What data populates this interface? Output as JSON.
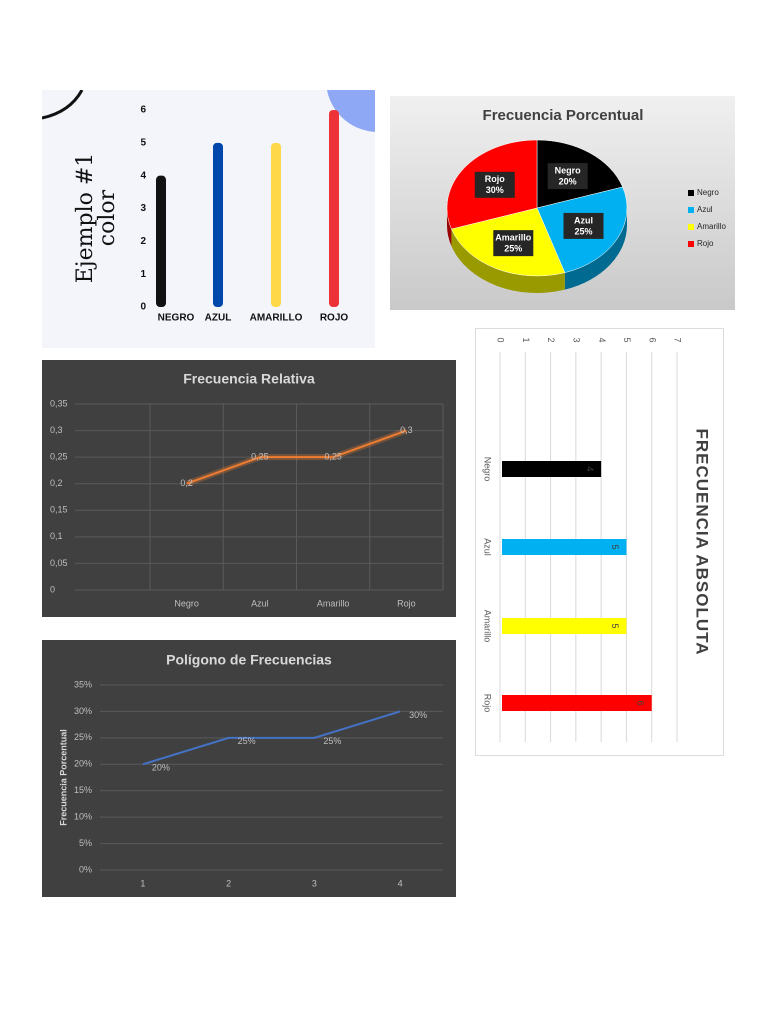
{
  "chart_data": [
    {
      "type": "bar",
      "title": "Ejemplo #1",
      "subtitle": "color",
      "categories": [
        "NEGRO",
        "AZUL",
        "AMARILLO",
        "ROJO"
      ],
      "values": [
        4,
        5,
        5,
        6
      ],
      "colors": [
        "#111111",
        "#0047ab",
        "#ffd84a",
        "#ee3338"
      ],
      "ylim": [
        0,
        6
      ],
      "yticks": [
        0,
        1,
        2,
        3,
        4,
        5,
        6
      ]
    },
    {
      "type": "pie",
      "title": "Frecuencia Porcentual",
      "categories": [
        "Negro",
        "Azul",
        "Amarillo",
        "Rojo"
      ],
      "values": [
        20,
        25,
        25,
        30
      ],
      "value_labels": [
        "20%",
        "25%",
        "25%",
        "30%"
      ],
      "colors": [
        "#000000",
        "#00b0f0",
        "#ffff00",
        "#ff0000"
      ],
      "legend": "right"
    },
    {
      "type": "line",
      "title": "Frecuencia Relativa",
      "categories": [
        "Negro",
        "Azul",
        "Amarillo",
        "Rojo"
      ],
      "values": [
        0.2,
        0.25,
        0.25,
        0.3
      ],
      "value_labels": [
        "0,2",
        "0,25",
        "0,25",
        "0,3"
      ],
      "color": "#ed7d31",
      "ylim": [
        0,
        0.35
      ],
      "yticks": [
        0,
        {
          "value": 0.05,
          "label": "0,05"
        },
        {
          "value": 0.1,
          "label": "0,1"
        },
        {
          "value": 0.15,
          "label": "0,15"
        },
        {
          "value": 0.2,
          "label": "0,2"
        },
        {
          "value": 0.25,
          "label": "0,25"
        },
        {
          "value": 0.3,
          "label": "0,3"
        },
        {
          "value": 0.35,
          "label": "0,35"
        }
      ],
      "grid": true
    },
    {
      "type": "line",
      "title": "Polígono de Frecuencias",
      "ylabel": "Frecuencia Porcentual",
      "categories": [
        "1",
        "2",
        "3",
        "4"
      ],
      "values": [
        20,
        25,
        25,
        30
      ],
      "value_labels": [
        "20%",
        "25%",
        "25%",
        "30%"
      ],
      "color": "#4472c4",
      "ylim": [
        0,
        35
      ],
      "yticks": [
        {
          "value": 0,
          "label": "0%"
        },
        {
          "value": 5,
          "label": "5%"
        },
        {
          "value": 10,
          "label": "10%"
        },
        {
          "value": 15,
          "label": "15%"
        },
        {
          "value": 20,
          "label": "20%"
        },
        {
          "value": 25,
          "label": "25%"
        },
        {
          "value": 30,
          "label": "30%"
        },
        {
          "value": 35,
          "label": "35%"
        }
      ],
      "grid": true
    },
    {
      "type": "hbar",
      "title": "FRECUENCIA ABSOLUTA",
      "categories": [
        "Negro",
        "Azul",
        "Amarillo",
        "Rojo"
      ],
      "values": [
        4,
        5,
        5,
        6
      ],
      "colors": [
        "#000000",
        "#00b0f0",
        "#ffff00",
        "#ff0000"
      ],
      "xlim": [
        0,
        7
      ],
      "xticks": [
        0,
        1,
        2,
        3,
        4,
        5,
        6,
        7
      ],
      "grid": true
    }
  ]
}
